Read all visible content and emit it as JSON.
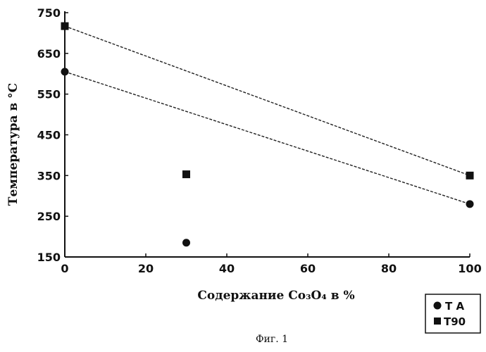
{
  "chart_data": {
    "type": "scatter",
    "xlabel": "Содержание Co₃O₄ в %",
    "ylabel": "Температура в °С",
    "xlim": [
      0,
      100
    ],
    "ylim": [
      150,
      750
    ],
    "xticks": [
      0,
      20,
      40,
      60,
      80,
      100
    ],
    "yticks": [
      150,
      250,
      350,
      450,
      550,
      650,
      750
    ],
    "grid": false,
    "legend_position": "bottom-right",
    "series": [
      {
        "name": "T A",
        "marker": "circle",
        "points": [
          [
            0,
            605
          ],
          [
            30,
            185
          ],
          [
            100,
            280
          ]
        ],
        "trendline": [
          [
            0,
            605
          ],
          [
            100,
            280
          ]
        ]
      },
      {
        "name": "T90",
        "marker": "square",
        "points": [
          [
            0,
            717
          ],
          [
            30,
            353
          ],
          [
            100,
            350
          ]
        ],
        "trendline": [
          [
            0,
            717
          ],
          [
            100,
            350
          ]
        ]
      }
    ]
  },
  "caption": "Фиг. 1"
}
